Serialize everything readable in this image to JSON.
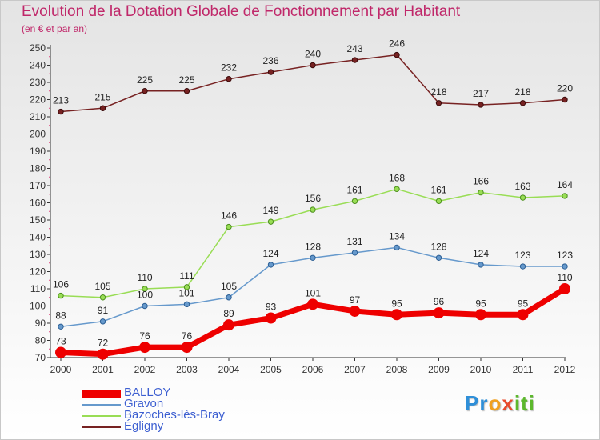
{
  "header": {
    "title": "Evolution de la Dotation Globale de Fonctionnement par Habitant",
    "subtitle": "(en € et par an)"
  },
  "logo": {
    "text": "Proxiti"
  },
  "chart_data": {
    "type": "line",
    "title": "Evolution de la Dotation Globale de Fonctionnement par Habitant",
    "subtitle": "(en € et par an)",
    "x": [
      "2000",
      "2001",
      "2002",
      "2003",
      "2004",
      "2005",
      "2006",
      "2007",
      "2008",
      "2009",
      "2010",
      "2011",
      "2012"
    ],
    "ylim": [
      70,
      250
    ],
    "ytick_step": 10,
    "grid": false,
    "legend_position": "bottom-left",
    "series": [
      {
        "name": "BALLOY",
        "color": "#ee0000",
        "values": [
          73,
          72,
          76,
          76,
          89,
          93,
          101,
          97,
          95,
          96,
          95,
          95,
          110
        ]
      },
      {
        "name": "Gravon",
        "color": "#6699cc",
        "values": [
          88,
          91,
          100,
          101,
          105,
          124,
          128,
          131,
          134,
          128,
          124,
          123,
          123
        ]
      },
      {
        "name": "Bazoches-lès-Bray",
        "color": "#99dd55",
        "values": [
          106,
          105,
          110,
          111,
          146,
          149,
          156,
          161,
          168,
          161,
          166,
          163,
          164
        ]
      },
      {
        "name": "Égligny",
        "color": "#772222",
        "values": [
          213,
          215,
          225,
          225,
          232,
          236,
          240,
          243,
          246,
          218,
          217,
          218,
          220
        ]
      }
    ]
  }
}
